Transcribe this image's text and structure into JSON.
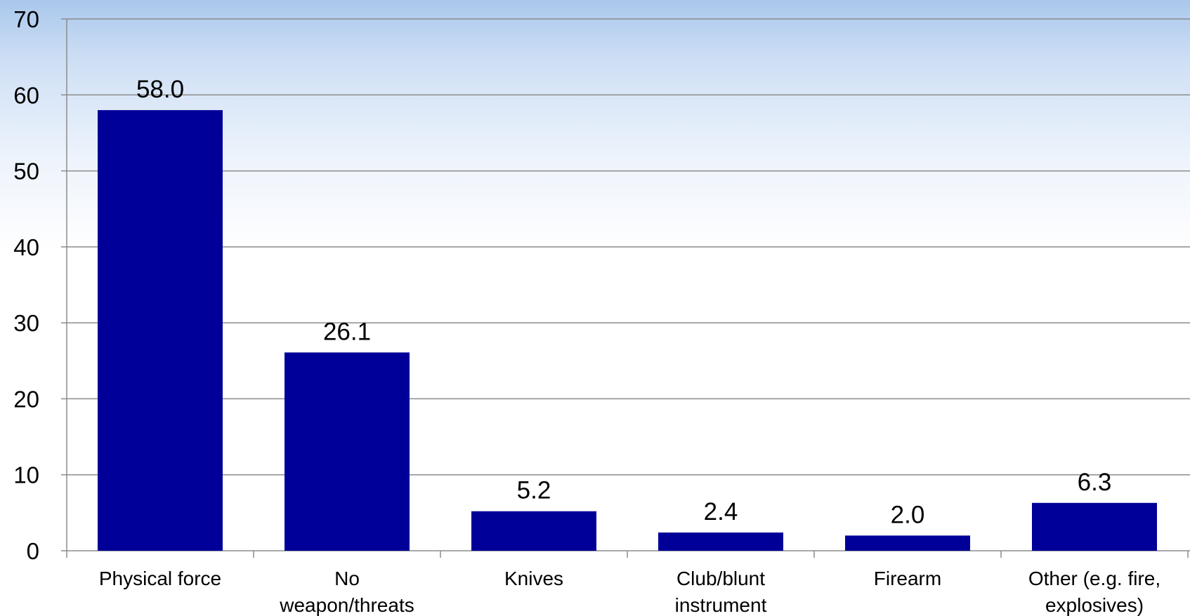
{
  "chart_data": {
    "type": "bar",
    "categories": [
      [
        "Physical force"
      ],
      [
        "No",
        "weapon/threats"
      ],
      [
        "Knives"
      ],
      [
        "Club/blunt",
        "instrument"
      ],
      [
        "Firearm"
      ],
      [
        "Other (e.g. fire,",
        "explosives)"
      ]
    ],
    "values": [
      58.0,
      26.1,
      5.2,
      2.4,
      2.0,
      6.3
    ],
    "value_labels": [
      "58.0",
      "26.1",
      "5.2",
      "2.4",
      "2.0",
      "6.3"
    ],
    "yticks": [
      "0",
      "10",
      "20",
      "30",
      "40",
      "50",
      "60",
      "70"
    ],
    "ylim": [
      0,
      70
    ],
    "grid": true,
    "title": "",
    "xlabel": "",
    "ylabel": "",
    "colors": {
      "bar": "#000099",
      "grid": "#8c8c8c",
      "axis": "#8c8c8c"
    }
  }
}
